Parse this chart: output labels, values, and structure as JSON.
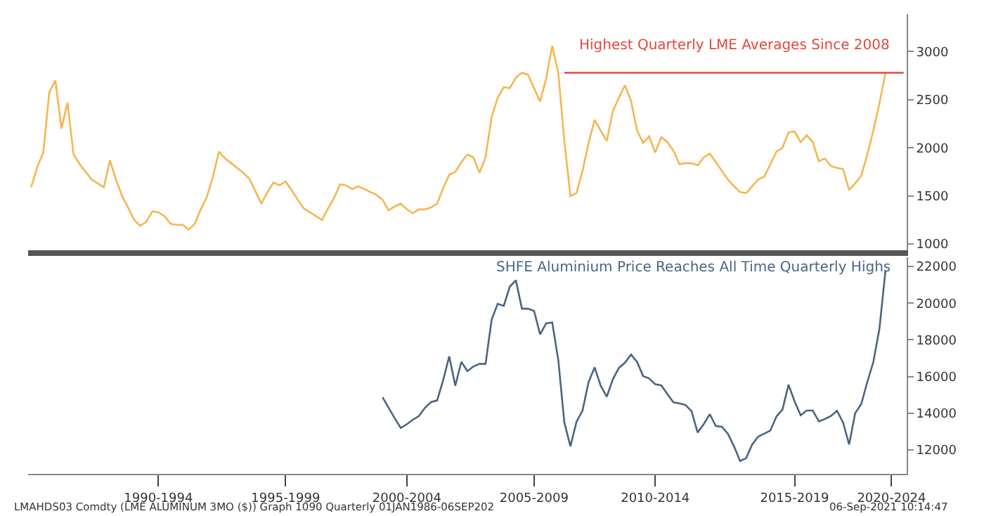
{
  "chart_data": [
    {
      "type": "line",
      "ylim": [
        935,
        3390
      ],
      "yticks": [
        1000,
        1500,
        2000,
        2500,
        3000
      ],
      "tick_labels": "y",
      "categories": [
        null,
        null,
        null,
        null,
        null,
        null,
        null,
        null,
        null,
        null,
        null,
        null,
        null,
        null,
        null,
        null,
        null,
        null,
        null,
        null,
        null,
        null,
        null,
        null,
        null,
        null,
        null,
        null,
        null,
        null,
        null,
        null,
        null,
        null,
        null,
        null,
        null,
        null,
        null,
        null,
        null,
        null,
        null,
        null,
        null,
        null,
        null,
        null,
        null,
        null,
        null,
        null,
        null,
        null,
        null,
        null,
        null,
        null,
        null,
        null,
        null,
        null,
        null,
        null,
        null,
        null,
        null,
        null,
        null,
        null,
        null,
        null,
        null,
        null,
        null,
        null,
        null,
        null,
        null,
        null,
        null,
        null,
        null,
        null,
        null,
        null,
        null,
        null,
        null,
        null,
        null,
        null,
        null,
        null,
        null,
        null,
        null,
        null,
        null,
        null,
        null,
        null,
        null,
        null,
        null,
        null,
        null,
        null,
        null,
        null,
        null,
        null,
        null,
        null,
        null,
        null,
        null,
        null,
        null,
        null,
        null,
        null,
        null,
        null,
        null,
        null,
        null,
        null,
        null,
        null,
        null,
        null,
        null,
        null,
        null,
        null,
        null,
        null,
        null,
        null,
        null,
        null,
        null,
        null,
        null
      ],
      "annotations": [
        {
          "text": "Highest Quarterly LME Averages Since 2008",
          "y": 2780
        }
      ],
      "series": [
        {
          "color": "#f5b650",
          "values": [
            1590,
            1800,
            1950,
            2580,
            2700,
            2200,
            2470,
            1930,
            1830,
            1750,
            1670,
            1630,
            1590,
            1870,
            1670,
            1500,
            1380,
            1250,
            1190,
            1230,
            1340,
            1330,
            1290,
            1210,
            1200,
            1200,
            1150,
            1210,
            1360,
            1490,
            1700,
            1960,
            1890,
            1840,
            1790,
            1740,
            1680,
            1550,
            1420,
            1540,
            1640,
            1610,
            1650,
            1560,
            1460,
            1370,
            1330,
            1290,
            1250,
            1370,
            1480,
            1620,
            1610,
            1570,
            1600,
            1570,
            1540,
            1510,
            1460,
            1350,
            1390,
            1420,
            1360,
            1320,
            1360,
            1360,
            1380,
            1420,
            1580,
            1720,
            1750,
            1850,
            1930,
            1900,
            1740,
            1900,
            2320,
            2520,
            2630,
            2620,
            2730,
            2780,
            2760,
            2620,
            2480,
            2720,
            3060,
            2780,
            2070,
            1500,
            1530,
            1760,
            2050,
            2290,
            2180,
            2070,
            2380,
            2520,
            2650,
            2490,
            2180,
            2050,
            2120,
            1950,
            2110,
            2060,
            1970,
            1830,
            1840,
            1840,
            1820,
            1900,
            1940,
            1850,
            1760,
            1670,
            1600,
            1540,
            1530,
            1600,
            1670,
            1700,
            1830,
            1960,
            2000,
            2160,
            2170,
            2060,
            2130,
            2060,
            1860,
            1890,
            1810,
            1790,
            1780,
            1560,
            1630,
            1710,
            1930,
            2180,
            2460,
            2780,
            null,
            null,
            null
          ]
        },
        {
          "color": "#e8453c",
          "values": [
            null,
            null,
            null,
            null,
            null,
            null,
            null,
            null,
            null,
            null,
            null,
            null,
            null,
            null,
            null,
            null,
            null,
            null,
            null,
            null,
            null,
            null,
            null,
            null,
            null,
            null,
            null,
            null,
            null,
            null,
            null,
            null,
            null,
            null,
            null,
            null,
            null,
            null,
            null,
            null,
            null,
            null,
            null,
            null,
            null,
            null,
            null,
            null,
            null,
            null,
            null,
            null,
            null,
            null,
            null,
            null,
            null,
            null,
            null,
            null,
            null,
            null,
            null,
            null,
            null,
            null,
            null,
            null,
            null,
            null,
            null,
            null,
            null,
            null,
            null,
            null,
            null,
            null,
            null,
            null,
            null,
            null,
            null,
            null,
            null,
            null,
            null,
            null,
            2780,
            2780,
            2780,
            2780,
            2780,
            2780,
            2780,
            2780,
            2780,
            2780,
            2780,
            2780,
            2780,
            2780,
            2780,
            2780,
            2780,
            2780,
            2780,
            2780,
            2780,
            2780,
            2780,
            2780,
            2780,
            2780,
            2780,
            2780,
            2780,
            2780,
            2780,
            2780,
            2780,
            2780,
            2780,
            2780,
            2780,
            2780,
            2780,
            2780,
            2780,
            2780,
            2780,
            2780,
            2780,
            2780,
            2780,
            2780,
            2780,
            2780,
            2780,
            2780,
            2780,
            2780,
            2780,
            2780,
            2780
          ]
        }
      ]
    },
    {
      "type": "line",
      "ylim": [
        10700,
        22500
      ],
      "yticks": [
        12000,
        14000,
        16000,
        18000,
        20000,
        22000
      ],
      "categories": [
        null,
        null,
        null,
        null,
        null,
        null,
        null,
        null,
        null,
        null,
        null,
        null,
        null,
        null,
        null,
        null,
        null,
        null,
        null,
        null,
        null,
        "1990-1994",
        null,
        null,
        null,
        null,
        null,
        null,
        null,
        null,
        null,
        null,
        null,
        null,
        null,
        null,
        null,
        null,
        null,
        null,
        null,
        null,
        "1995-1999",
        null,
        null,
        null,
        null,
        null,
        null,
        null,
        null,
        null,
        null,
        null,
        null,
        null,
        null,
        null,
        null,
        null,
        null,
        null,
        "2000-2004",
        null,
        null,
        null,
        null,
        null,
        null,
        null,
        null,
        null,
        null,
        null,
        null,
        null,
        null,
        null,
        null,
        null,
        null,
        null,
        null,
        "2005-2009",
        null,
        null,
        null,
        null,
        null,
        null,
        null,
        null,
        null,
        null,
        null,
        null,
        null,
        null,
        null,
        null,
        null,
        null,
        null,
        "2010-2014",
        null,
        null,
        null,
        null,
        null,
        null,
        null,
        null,
        null,
        null,
        null,
        null,
        null,
        null,
        null,
        null,
        null,
        null,
        null,
        null,
        null,
        null,
        "2015-2019",
        null,
        null,
        null,
        null,
        null,
        null,
        null,
        null,
        null,
        null,
        null,
        null,
        null,
        null,
        null,
        "2020-2024",
        null,
        null
      ],
      "annotations": [
        "SHFE Aluminium Price Reaches All Time Quarterly Highs",
        "LMAHDS03 Comdty (LME ALUMINUM 3MO ($)) Graph 1090 Quarterly 01JAN1986-06SEP202",
        "06-Sep-2021 10:14:47"
      ],
      "series": [
        {
          "color": "#4a6582",
          "values": [
            null,
            null,
            null,
            null,
            null,
            null,
            null,
            null,
            null,
            null,
            null,
            null,
            null,
            null,
            null,
            null,
            null,
            null,
            null,
            null,
            null,
            null,
            null,
            null,
            null,
            null,
            null,
            null,
            null,
            null,
            null,
            null,
            null,
            null,
            null,
            null,
            null,
            null,
            null,
            null,
            null,
            null,
            null,
            null,
            null,
            null,
            null,
            null,
            null,
            null,
            null,
            null,
            null,
            null,
            null,
            null,
            null,
            null,
            14870,
            14300,
            13730,
            13200,
            13400,
            13650,
            13850,
            14300,
            14610,
            14700,
            15800,
            17100,
            15500,
            16800,
            16300,
            16550,
            16690,
            16690,
            19100,
            19970,
            19850,
            20900,
            21250,
            19700,
            19700,
            19580,
            18300,
            18900,
            18950,
            16900,
            13500,
            12200,
            13530,
            14150,
            15700,
            16500,
            15500,
            14900,
            15850,
            16470,
            16750,
            17200,
            16800,
            16030,
            15900,
            15580,
            15520,
            15050,
            14600,
            14540,
            14450,
            14110,
            12950,
            13400,
            13950,
            13300,
            13270,
            12880,
            12200,
            11400,
            11550,
            12300,
            12730,
            12890,
            13060,
            13820,
            14200,
            15560,
            14650,
            13890,
            14150,
            14150,
            13560,
            13690,
            13850,
            14140,
            13500,
            12300,
            14000,
            14500,
            15700,
            16800,
            18600,
            21770,
            null,
            null,
            null
          ]
        }
      ]
    }
  ]
}
